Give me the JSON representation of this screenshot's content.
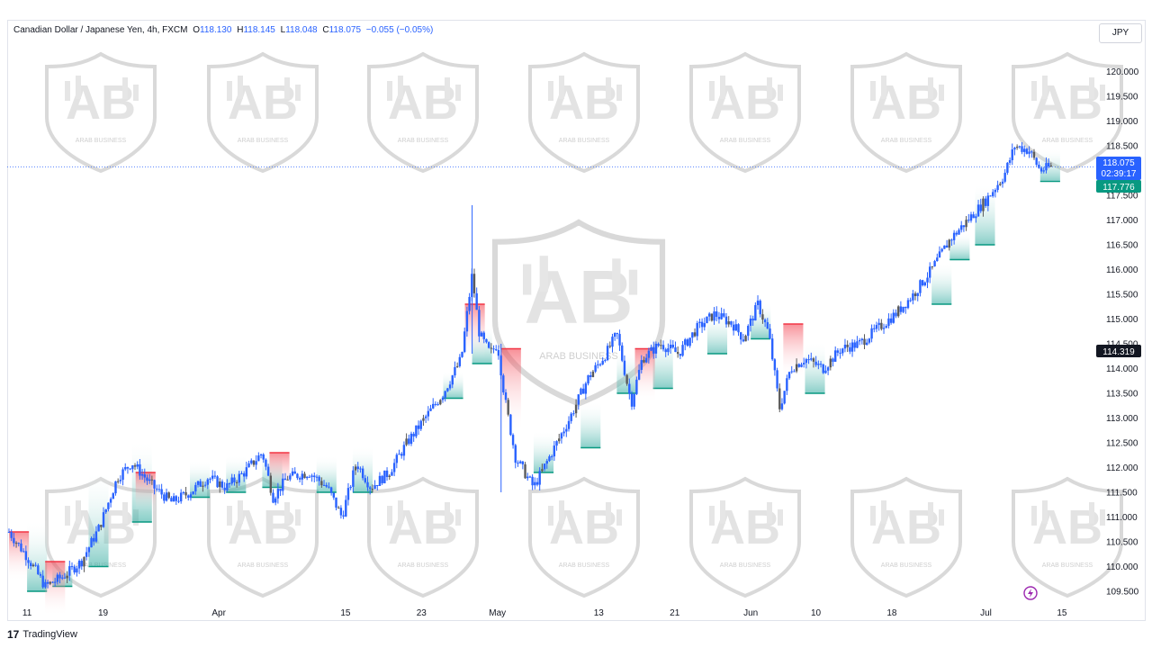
{
  "header": {
    "symbol": "Canadian Dollar / Japanese Yen, 4h, FXCM",
    "open_label": "O",
    "open": "118.130",
    "high_label": "H",
    "high": "118.145",
    "low_label": "L",
    "low": "118.048",
    "close_label": "C",
    "close": "118.075",
    "change": "−0.055 (−0.05%)"
  },
  "currency_button": "JPY",
  "price_badges": {
    "last_price": "118.075",
    "countdown": "02:39:17",
    "indicator_value": "117.776",
    "marker_price": "114.319"
  },
  "brand": {
    "logo": "17",
    "name": "TradingView"
  },
  "watermark": {
    "text": "ARAB BUSINESS",
    "icon": "shield-ab-icon"
  },
  "colors": {
    "candle": "#2962ff",
    "candle_alt": "#5a5a5a",
    "bull_fill": "#26a69a",
    "bear_fill": "#f23645",
    "last_price": "#2962ff",
    "indicator": "#089981",
    "marker": "#131722"
  },
  "chart_data": {
    "type": "candlestick",
    "title": "",
    "xlabel": "",
    "ylabel": "",
    "ylim": [
      109.3,
      120.5
    ],
    "y_ticks": [
      "120.000",
      "119.500",
      "119.000",
      "118.500",
      "118.000",
      "117.500",
      "117.000",
      "116.500",
      "116.000",
      "115.500",
      "115.000",
      "114.500",
      "114.000",
      "113.500",
      "113.000",
      "112.500",
      "112.000",
      "111.500",
      "111.000",
      "110.500",
      "110.000",
      "109.500"
    ],
    "x_ticks": [
      {
        "label": "11",
        "t": 0.5
      },
      {
        "label": "19",
        "t": 2.6
      },
      {
        "label": "Apr",
        "t": 5.8
      },
      {
        "label": "15",
        "t": 9.3
      },
      {
        "label": "23",
        "t": 11.4
      },
      {
        "label": "May",
        "t": 13.5
      },
      {
        "label": "13",
        "t": 16.3
      },
      {
        "label": "21",
        "t": 18.4
      },
      {
        "label": "Jun",
        "t": 20.5
      },
      {
        "label": "10",
        "t": 22.3
      },
      {
        "label": "18",
        "t": 24.4
      },
      {
        "label": "Jul",
        "t": 27.0
      },
      {
        "label": "15",
        "t": 29.1
      }
    ],
    "price_path": [
      [
        0,
        110.7
      ],
      [
        0.5,
        110.2
      ],
      [
        1,
        109.6
      ],
      [
        1.5,
        109.8
      ],
      [
        2,
        110.1
      ],
      [
        2.5,
        110.8
      ],
      [
        3,
        111.8
      ],
      [
        3.4,
        112.1
      ],
      [
        4,
        111.6
      ],
      [
        4.5,
        111.3
      ],
      [
        5,
        111.5
      ],
      [
        5.5,
        111.8
      ],
      [
        6,
        111.6
      ],
      [
        6.5,
        111.9
      ],
      [
        7,
        112.3
      ],
      [
        7.3,
        111.4
      ],
      [
        7.7,
        111.8
      ],
      [
        8.3,
        111.9
      ],
      [
        8.8,
        111.6
      ],
      [
        9.2,
        111.0
      ],
      [
        9.6,
        112.1
      ],
      [
        10,
        111.6
      ],
      [
        10.5,
        111.9
      ],
      [
        11,
        112.5
      ],
      [
        11.5,
        113.0
      ],
      [
        12,
        113.5
      ],
      [
        12.5,
        114.2
      ],
      [
        12.8,
        115.9
      ],
      [
        13,
        114.7
      ],
      [
        13.3,
        114.3
      ],
      [
        13.5,
        114.5
      ],
      [
        13.7,
        113.4
      ],
      [
        14,
        112.2
      ],
      [
        14.5,
        111.6
      ],
      [
        15,
        112.3
      ],
      [
        15.5,
        113.0
      ],
      [
        16,
        113.8
      ],
      [
        16.5,
        114.3
      ],
      [
        16.8,
        114.7
      ],
      [
        17.2,
        113.3
      ],
      [
        17.5,
        114.2
      ],
      [
        18,
        114.5
      ],
      [
        18.5,
        114.3
      ],
      [
        19,
        114.8
      ],
      [
        19.5,
        115.1
      ],
      [
        20,
        114.9
      ],
      [
        20.3,
        114.6
      ],
      [
        20.7,
        115.3
      ],
      [
        21,
        114.7
      ],
      [
        21.3,
        113.2
      ],
      [
        21.6,
        114.0
      ],
      [
        22,
        114.2
      ],
      [
        22.5,
        114.0
      ],
      [
        23,
        114.4
      ],
      [
        23.5,
        114.5
      ],
      [
        24,
        114.8
      ],
      [
        24.5,
        115.1
      ],
      [
        25,
        115.5
      ],
      [
        25.5,
        116.0
      ],
      [
        26,
        116.6
      ],
      [
        26.5,
        117.0
      ],
      [
        27,
        117.4
      ],
      [
        27.5,
        117.9
      ],
      [
        27.8,
        118.5
      ],
      [
        28.2,
        118.4
      ],
      [
        28.5,
        118.0
      ],
      [
        28.8,
        118.08
      ]
    ],
    "bull_zones": [
      [
        0.5,
        110.4,
        109.5
      ],
      [
        1.2,
        109.6,
        109.6
      ],
      [
        2.2,
        111.4,
        110.0
      ],
      [
        3.4,
        112.0,
        110.9
      ],
      [
        5,
        111.6,
        111.4
      ],
      [
        6,
        111.7,
        111.5
      ],
      [
        7,
        111.8,
        111.6
      ],
      [
        8.5,
        111.7,
        111.5
      ],
      [
        9.5,
        111.9,
        111.5
      ],
      [
        12,
        113.3,
        113.4
      ],
      [
        12.8,
        114.3,
        114.1
      ],
      [
        14.5,
        112.2,
        111.9
      ],
      [
        15.8,
        112.8,
        112.4
      ],
      [
        16.8,
        113.8,
        113.5
      ],
      [
        17.8,
        114.2,
        113.6
      ],
      [
        19.3,
        114.6,
        114.3
      ],
      [
        20.5,
        114.8,
        114.6
      ],
      [
        22,
        114.0,
        113.5
      ],
      [
        25.5,
        115.6,
        115.3
      ],
      [
        26,
        115.9,
        116.2
      ],
      [
        26.7,
        117.2,
        116.5
      ],
      [
        28.5,
        117.9,
        117.78
      ]
    ],
    "bear_zones": [
      [
        0,
        110.7,
        110.5
      ],
      [
        1,
        110.1,
        109.8
      ],
      [
        3.5,
        111.9,
        112.0
      ],
      [
        7.2,
        112.3,
        112.3
      ],
      [
        12.6,
        115.3,
        115.0
      ],
      [
        13.6,
        114.4,
        113.5
      ],
      [
        17.3,
        114.4,
        114.1
      ],
      [
        21.4,
        114.9,
        114.6
      ]
    ]
  }
}
